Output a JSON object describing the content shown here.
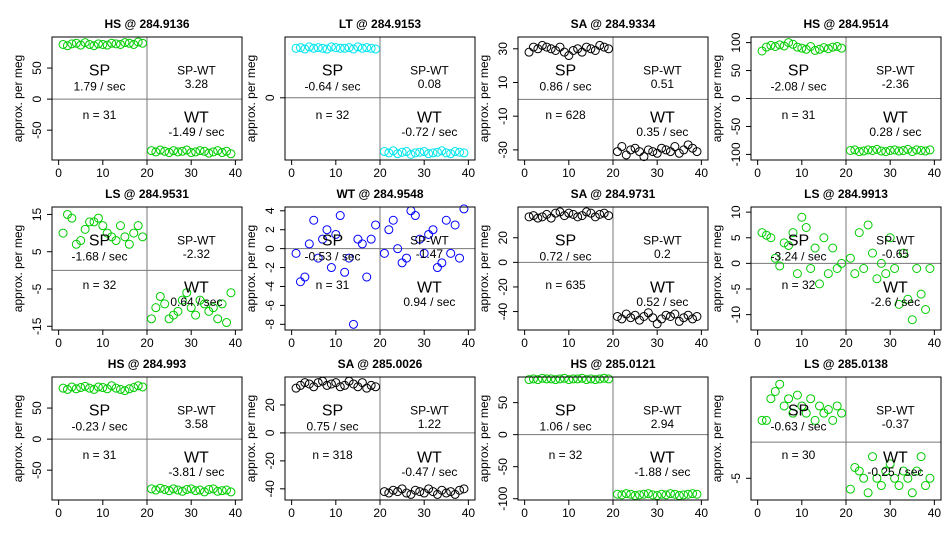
{
  "chart_data": [
    {
      "type": "scatter",
      "title": "HS @ 284.9136",
      "ylabel": "approx. per meg",
      "color": "#00cd00",
      "xlim": [
        -1.5,
        41.5
      ],
      "ylim": [
        -98,
        100
      ],
      "xticks": [
        0,
        10,
        20,
        30,
        40
      ],
      "yticks": [
        -50,
        0,
        50
      ],
      "vline": 20,
      "hline": 0,
      "annotations": {
        "sp_label": "SP",
        "sp_rate": "1.79 / sec",
        "spwt_label": "SP-WT",
        "spwt_value": "3.28",
        "wt_label": "WT",
        "wt_rate": "-1.49 / sec",
        "n": "n = 31"
      },
      "x": [
        1,
        2,
        3,
        4,
        5,
        6,
        7,
        8,
        9,
        10,
        11,
        12,
        13,
        14,
        15,
        16,
        17,
        18,
        19,
        21,
        22,
        23,
        24,
        25,
        26,
        27,
        28,
        29,
        30,
        31,
        32,
        33,
        34,
        35,
        36,
        37,
        38,
        39
      ],
      "values": [
        88,
        86,
        89,
        90,
        87,
        91,
        88,
        86,
        89,
        88,
        87,
        90,
        89,
        88,
        91,
        90,
        88,
        92,
        90,
        -83,
        -85,
        -82,
        -84,
        -86,
        -83,
        -85,
        -84,
        -82,
        -86,
        -85,
        -83,
        -84,
        -87,
        -85,
        -83,
        -86,
        -84,
        -88
      ]
    },
    {
      "type": "scatter",
      "title": "LT @ 284.9153",
      "ylabel": "approx. per meg",
      "color": "#00e5ee",
      "xlim": [
        -1.5,
        41.5
      ],
      "ylim": [
        -88,
        86
      ],
      "xticks": [
        0,
        10,
        20,
        30,
        40
      ],
      "yticks": [
        0
      ],
      "vline": 20,
      "hline": 0,
      "annotations": {
        "sp_label": "SP",
        "sp_rate": "-0.64 / sec",
        "spwt_label": "SP-WT",
        "spwt_value": "0.08",
        "wt_label": "WT",
        "wt_rate": "-0.72 / sec",
        "n": "n = 32"
      },
      "x": [
        1,
        2,
        3,
        4,
        5,
        6,
        7,
        8,
        9,
        10,
        11,
        12,
        13,
        14,
        15,
        16,
        17,
        18,
        19,
        21,
        22,
        23,
        24,
        25,
        26,
        27,
        28,
        29,
        30,
        31,
        32,
        33,
        34,
        35,
        36,
        37,
        38,
        39
      ],
      "values": [
        70,
        71,
        69,
        72,
        70,
        71,
        70,
        69,
        72,
        71,
        70,
        70,
        71,
        69,
        72,
        70,
        71,
        70,
        69,
        -76,
        -78,
        -75,
        -79,
        -77,
        -76,
        -80,
        -78,
        -77,
        -76,
        -79,
        -78,
        -77,
        -75,
        -78,
        -79,
        -76,
        -77,
        -78
      ]
    },
    {
      "type": "scatter",
      "title": "SA @ 284.9334",
      "ylabel": "approx. per meg",
      "color": "#000000",
      "xlim": [
        -1.5,
        41.5
      ],
      "ylim": [
        -36,
        37
      ],
      "xticks": [
        0,
        10,
        20,
        30,
        40
      ],
      "yticks": [
        -30,
        -10,
        10,
        30
      ],
      "vline": 20,
      "hline": 0,
      "annotations": {
        "sp_label": "SP",
        "sp_rate": "0.86 / sec",
        "spwt_label": "SP-WT",
        "spwt_value": "0.51",
        "wt_label": "WT",
        "wt_rate": "0.35 / sec",
        "n": "n = 628"
      },
      "x": [
        1,
        2,
        3,
        4,
        5,
        6,
        7,
        8,
        9,
        10,
        11,
        12,
        13,
        14,
        15,
        16,
        17,
        18,
        19,
        21,
        22,
        23,
        24,
        25,
        26,
        27,
        28,
        29,
        30,
        31,
        32,
        33,
        34,
        35,
        36,
        37,
        38,
        39
      ],
      "values": [
        28,
        31,
        30,
        32,
        31,
        30,
        29,
        31,
        28,
        26,
        29,
        30,
        28,
        31,
        30,
        29,
        32,
        31,
        30,
        -31,
        -28,
        -33,
        -30,
        -29,
        -31,
        -34,
        -30,
        -31,
        -32,
        -29,
        -30,
        -31,
        -28,
        -32,
        -30,
        -27,
        -29,
        -31
      ]
    },
    {
      "type": "scatter",
      "title": "HS @ 284.9514",
      "ylabel": "approx. per meg",
      "color": "#00cd00",
      "xlim": [
        -1.5,
        41.5
      ],
      "ylim": [
        -110,
        110
      ],
      "xticks": [
        0,
        10,
        20,
        30,
        40
      ],
      "yticks": [
        -100,
        -50,
        0,
        50,
        100
      ],
      "vline": 20,
      "hline": 0,
      "annotations": {
        "sp_label": "SP",
        "sp_rate": "-2.08 / sec",
        "spwt_label": "SP-WT",
        "spwt_value": "-2.36",
        "wt_label": "WT",
        "wt_rate": "0.28 / sec",
        "n": "n = 31"
      },
      "x": [
        1,
        2,
        3,
        4,
        5,
        6,
        7,
        8,
        9,
        10,
        11,
        12,
        13,
        14,
        15,
        16,
        17,
        18,
        19,
        21,
        22,
        23,
        24,
        25,
        26,
        27,
        28,
        29,
        30,
        31,
        32,
        33,
        34,
        35,
        36,
        37,
        38,
        39
      ],
      "values": [
        85,
        92,
        95,
        93,
        96,
        94,
        100,
        97,
        92,
        90,
        88,
        93,
        86,
        88,
        91,
        89,
        92,
        93,
        90,
        -93,
        -92,
        -95,
        -94,
        -92,
        -93,
        -91,
        -94,
        -95,
        -93,
        -92,
        -94,
        -93,
        -91,
        -95,
        -92,
        -93,
        -94,
        -92
      ]
    },
    {
      "type": "scatter",
      "title": "LS @ 284.9531",
      "ylabel": "approx. per meg",
      "color": "#00cd00",
      "xlim": [
        -1.5,
        41.5
      ],
      "ylim": [
        -16,
        17
      ],
      "xticks": [
        0,
        10,
        20,
        30,
        40
      ],
      "yticks": [
        -15,
        -5,
        5,
        15
      ],
      "vline": 20,
      "hline": 0,
      "annotations": {
        "sp_label": "SP",
        "sp_rate": "-1.68 / sec",
        "spwt_label": "SP-WT",
        "spwt_value": "-2.32",
        "wt_label": "WT",
        "wt_rate": "0.64 / sec",
        "n": "n = 32"
      },
      "x": [
        1,
        2,
        3,
        4,
        5,
        6,
        7,
        8,
        9,
        10,
        11,
        12,
        13,
        14,
        15,
        16,
        17,
        18,
        19,
        21,
        22,
        23,
        24,
        25,
        26,
        27,
        28,
        29,
        30,
        31,
        32,
        33,
        34,
        35,
        36,
        37,
        38,
        39
      ],
      "values": [
        10,
        15,
        14,
        7,
        8,
        11,
        13,
        13,
        14,
        12,
        10,
        9,
        8,
        12,
        9,
        7,
        10,
        12,
        9,
        -13,
        -10,
        -7,
        -9,
        -13,
        -12,
        -11,
        -8,
        -6,
        -10,
        -12,
        -8,
        -9,
        -11,
        -10,
        -13,
        -9,
        -14,
        -6
      ]
    },
    {
      "type": "scatter",
      "title": "WT @ 284.9548",
      "ylabel": "approx. per meg",
      "color": "#0000ff",
      "xlim": [
        -1.5,
        41.5
      ],
      "ylim": [
        -8.6,
        4.4
      ],
      "xticks": [
        0,
        10,
        20,
        30,
        40
      ],
      "yticks": [
        -8,
        -6,
        -4,
        -2,
        0,
        2,
        4
      ],
      "vline": 20,
      "hline": 0,
      "annotations": {
        "sp_label": "SP",
        "sp_rate": "-0.53 / sec",
        "spwt_label": "SP-WT",
        "spwt_value": "-1.47",
        "wt_label": "WT",
        "wt_rate": "0.94 / sec",
        "n": "n = 31"
      },
      "x": [
        1,
        2,
        3,
        4,
        5,
        6,
        7,
        8,
        9,
        10,
        11,
        12,
        13,
        14,
        15,
        16,
        17,
        18,
        19,
        21,
        22,
        23,
        24,
        25,
        26,
        27,
        28,
        29,
        30,
        31,
        32,
        33,
        34,
        35,
        36,
        37,
        38,
        39
      ],
      "values": [
        -0.5,
        -3.5,
        -3,
        0.5,
        3,
        -1,
        1,
        2,
        -2,
        1.5,
        3.5,
        -2.5,
        -1,
        -8,
        1,
        0.5,
        -3,
        1,
        2.5,
        -0.5,
        2,
        3,
        0,
        -1.5,
        -1,
        4,
        3.5,
        1,
        -0.5,
        1.5,
        2,
        -2,
        -1.5,
        3,
        -0.5,
        2.5,
        -1,
        4.2
      ]
    },
    {
      "type": "scatter",
      "title": "SA @ 284.9731",
      "ylabel": "approx. per meg",
      "color": "#000000",
      "xlim": [
        -1.5,
        41.5
      ],
      "ylim": [
        -55,
        45
      ],
      "xticks": [
        0,
        10,
        20,
        30,
        40
      ],
      "yticks": [
        -40,
        -20,
        0,
        20
      ],
      "vline": 20,
      "hline": 0,
      "annotations": {
        "sp_label": "SP",
        "sp_rate": "0.72 / sec",
        "spwt_label": "SP-WT",
        "spwt_value": "0.2",
        "wt_label": "WT",
        "wt_rate": "0.52 / sec",
        "n": "n = 635"
      },
      "x": [
        1,
        2,
        3,
        4,
        5,
        6,
        7,
        8,
        9,
        10,
        11,
        12,
        13,
        14,
        15,
        16,
        17,
        18,
        19,
        21,
        22,
        23,
        24,
        25,
        26,
        27,
        28,
        29,
        30,
        31,
        32,
        33,
        34,
        35,
        36,
        37,
        38,
        39
      ],
      "values": [
        37,
        38,
        36,
        37,
        39,
        36,
        40,
        41,
        38,
        40,
        39,
        37,
        38,
        41,
        40,
        37,
        39,
        40,
        38,
        -44,
        -46,
        -42,
        -45,
        -43,
        -47,
        -44,
        -41,
        -45,
        -50,
        -46,
        -43,
        -44,
        -42,
        -48,
        -45,
        -43,
        -46,
        -44
      ]
    },
    {
      "type": "scatter",
      "title": "LS @ 284.9913",
      "ylabel": "approx. per meg",
      "color": "#00cd00",
      "xlim": [
        -1.5,
        41.5
      ],
      "ylim": [
        -13,
        11
      ],
      "xticks": [
        0,
        10,
        20,
        30,
        40
      ],
      "yticks": [
        -10,
        -5,
        0,
        5,
        10
      ],
      "vline": 20,
      "hline": 0,
      "annotations": {
        "sp_label": "SP",
        "sp_rate": "-3.24 / sec",
        "spwt_label": "SP-WT",
        "spwt_value": "-0.65",
        "wt_label": "WT",
        "wt_rate": "-2.6 / sec",
        "n": "n = 32"
      },
      "x": [
        1,
        2,
        3,
        4,
        5,
        6,
        7,
        8,
        9,
        10,
        11,
        12,
        13,
        14,
        15,
        16,
        17,
        18,
        19,
        21,
        22,
        23,
        24,
        25,
        26,
        27,
        28,
        29,
        30,
        31,
        32,
        33,
        34,
        35,
        36,
        37,
        38,
        39
      ],
      "values": [
        6,
        5.5,
        5,
        1,
        -0.5,
        4,
        3.5,
        6,
        -2,
        9,
        7,
        -1,
        3,
        -4,
        5,
        -2,
        3,
        -1,
        0,
        1,
        -2,
        6,
        -1,
        7.5,
        2,
        -3,
        0,
        -2,
        5,
        -1,
        -8,
        2,
        -7,
        -11,
        -1,
        -6,
        -9,
        -1
      ]
    },
    {
      "type": "scatter",
      "title": "HS @ 284.993",
      "ylabel": "approx. per meg",
      "color": "#00cd00",
      "xlim": [
        -1.5,
        41.5
      ],
      "ylim": [
        -98,
        100
      ],
      "xticks": [
        0,
        10,
        20,
        30,
        40
      ],
      "yticks": [
        -50,
        0,
        50
      ],
      "vline": 20,
      "hline": 0,
      "annotations": {
        "sp_label": "SP",
        "sp_rate": "-0.23 / sec",
        "spwt_label": "SP-WT",
        "spwt_value": "3.58",
        "wt_label": "WT",
        "wt_rate": "-3.81 / sec",
        "n": "n = 31"
      },
      "x": [
        1,
        2,
        3,
        4,
        5,
        6,
        7,
        8,
        9,
        10,
        11,
        12,
        13,
        14,
        15,
        16,
        17,
        18,
        19,
        21,
        22,
        23,
        24,
        25,
        26,
        27,
        28,
        29,
        30,
        31,
        32,
        33,
        34,
        35,
        36,
        37,
        38,
        39
      ],
      "values": [
        82,
        80,
        84,
        81,
        83,
        85,
        82,
        80,
        84,
        83,
        81,
        86,
        82,
        80,
        78,
        81,
        83,
        86,
        84,
        -80,
        -82,
        -79,
        -81,
        -83,
        -80,
        -82,
        -84,
        -81,
        -80,
        -83,
        -82,
        -85,
        -81,
        -80,
        -84,
        -83,
        -82,
        -85
      ]
    },
    {
      "type": "scatter",
      "title": "SA @ 285.0026",
      "ylabel": "approx. per meg",
      "color": "#000000",
      "xlim": [
        -1.5,
        41.5
      ],
      "ylim": [
        -48,
        40
      ],
      "xticks": [
        0,
        10,
        20,
        30,
        40
      ],
      "yticks": [
        -40,
        -20,
        0,
        20
      ],
      "vline": 20,
      "hline": 0,
      "annotations": {
        "sp_label": "SP",
        "sp_rate": "0.75 / sec",
        "spwt_label": "SP-WT",
        "spwt_value": "1.22",
        "wt_label": "WT",
        "wt_rate": "-0.47 / sec",
        "n": "n = 318"
      },
      "x": [
        1,
        2,
        3,
        4,
        5,
        6,
        7,
        8,
        9,
        10,
        11,
        12,
        13,
        14,
        15,
        16,
        17,
        18,
        19,
        21,
        22,
        23,
        24,
        25,
        26,
        27,
        28,
        29,
        30,
        31,
        32,
        33,
        34,
        35,
        36,
        37,
        38,
        39
      ],
      "values": [
        32,
        34,
        36,
        35,
        33,
        36,
        37,
        34,
        35,
        36,
        33,
        34,
        37,
        35,
        33,
        36,
        32,
        34,
        33,
        -42,
        -43,
        -41,
        -42,
        -40,
        -43,
        -44,
        -41,
        -42,
        -43,
        -40,
        -42,
        -44,
        -41,
        -43,
        -42,
        -44,
        -41,
        -40
      ]
    },
    {
      "type": "scatter",
      "title": "HS @ 285.0121",
      "ylabel": "approx. per meg",
      "color": "#00cd00",
      "xlim": [
        -1.5,
        41.5
      ],
      "ylim": [
        -102,
        90
      ],
      "xticks": [
        0,
        10,
        20,
        30,
        40
      ],
      "yticks": [
        -100,
        -50,
        0,
        50
      ],
      "vline": 20,
      "hline": 0,
      "annotations": {
        "sp_label": "SP",
        "sp_rate": "1.06 / sec",
        "spwt_label": "SP-WT",
        "spwt_value": "2.94",
        "wt_label": "WT",
        "wt_rate": "-1.88 / sec",
        "n": "n = 32"
      },
      "x": [
        1,
        2,
        3,
        4,
        5,
        6,
        7,
        8,
        9,
        10,
        11,
        12,
        13,
        14,
        15,
        16,
        17,
        18,
        19,
        21,
        22,
        23,
        24,
        25,
        26,
        27,
        28,
        29,
        30,
        31,
        32,
        33,
        34,
        35,
        36,
        37,
        38,
        39
      ],
      "values": [
        86,
        87,
        86,
        88,
        87,
        87,
        86,
        87,
        88,
        86,
        87,
        87,
        88,
        86,
        87,
        86,
        87,
        88,
        87,
        -93,
        -94,
        -92,
        -93,
        -95,
        -94,
        -93,
        -92,
        -94,
        -95,
        -93,
        -94,
        -92,
        -93,
        -95,
        -94,
        -93,
        -92,
        -93
      ]
    },
    {
      "type": "scatter",
      "title": "LS @ 285.0138",
      "ylabel": "approx. per meg",
      "color": "#00cd00",
      "xlim": [
        -1.5,
        41.5
      ],
      "ylim": [
        -8,
        9
      ],
      "xticks": [
        0,
        10,
        20,
        30,
        40
      ],
      "yticks": [
        -5
      ],
      "vline": 20,
      "hline": 0,
      "annotations": {
        "sp_label": "SP",
        "sp_rate": "-0.63 / sec",
        "spwt_label": "SP-WT",
        "spwt_value": "-0.37",
        "wt_label": "WT",
        "wt_rate": "-0.25 / sec",
        "n": "n = 30"
      },
      "x": [
        1,
        2,
        3,
        4,
        5,
        6,
        7,
        8,
        9,
        10,
        11,
        12,
        13,
        14,
        15,
        16,
        17,
        18,
        19,
        21,
        22,
        23,
        24,
        25,
        26,
        27,
        28,
        29,
        30,
        31,
        32,
        33,
        34,
        35,
        36,
        37,
        38,
        39
      ],
      "values": [
        3,
        3,
        6,
        7,
        8,
        5,
        6,
        4,
        6.5,
        5,
        4,
        6,
        3,
        5,
        4,
        4.5,
        3,
        5,
        4,
        -6.5,
        -3.5,
        -4,
        -5,
        -7,
        -2,
        -5,
        -6,
        -4,
        -3,
        -5,
        -6,
        -4,
        -5,
        -7,
        -4,
        -2,
        -6,
        -5
      ]
    }
  ]
}
